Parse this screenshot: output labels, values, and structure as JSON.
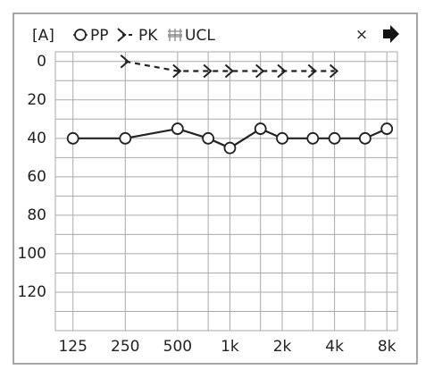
{
  "chart_data": {
    "type": "line",
    "unit_label": "[A]",
    "close_icon": "×",
    "x": [
      125,
      250,
      500,
      750,
      1000,
      1500,
      2000,
      3000,
      4000,
      6000,
      8000
    ],
    "series": [
      {
        "name": "PP",
        "color": "#222222",
        "marker": "circle",
        "dashed": false,
        "values": [
          40,
          40,
          35,
          40,
          45,
          35,
          40,
          40,
          40,
          40,
          35
        ]
      },
      {
        "name": "PK",
        "color": "#222222",
        "marker": "chevron",
        "dashed": true,
        "values": [
          null,
          0,
          5,
          5,
          5,
          5,
          5,
          5,
          5,
          null,
          null
        ]
      },
      {
        "name": "UCL",
        "color": "#888888",
        "marker": "comb",
        "dashed": false,
        "values": [
          null,
          null,
          null,
          null,
          null,
          null,
          null,
          null,
          null,
          null,
          null
        ]
      }
    ],
    "xscale": "log",
    "xlim": [
      99,
      9200
    ],
    "xticks": [
      125,
      250,
      500,
      {
        "value": 1000,
        "label": "1k"
      },
      {
        "value": 2000,
        "label": "2k"
      },
      {
        "value": 4000,
        "label": "4k"
      },
      {
        "value": 8000,
        "label": "8k"
      }
    ],
    "xminorticks": [
      750,
      1500,
      3000,
      6000
    ],
    "ylim": [
      -5,
      140
    ],
    "yinverted": true,
    "yticks": [
      0,
      20,
      40,
      60,
      80,
      100,
      120
    ],
    "yminorticks": [
      10,
      30,
      50,
      70,
      90,
      110,
      130
    ],
    "grid": true
  }
}
